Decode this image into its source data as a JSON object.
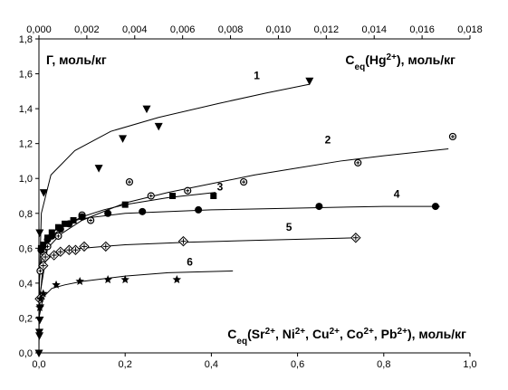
{
  "chart_data": {
    "type": "scatter",
    "grid": false,
    "ylabel": "Г, моль/кг",
    "top_xlabel": "C_eq(Hg2+), моль/кг",
    "bottom_xlabel": "C_eq(Sr2+, Ni2+, Cu2+, Co2+, Pb2+), моль/кг",
    "xlim": [
      0,
      1.0
    ],
    "ylim": [
      0,
      1.8
    ],
    "top_xlim": [
      0,
      0.018
    ],
    "x_ticks": [
      "0,0",
      "0,2",
      "0,4",
      "0,6",
      "0,8",
      "1,0"
    ],
    "x_tick_values": [
      0,
      0.2,
      0.4,
      0.6,
      0.8,
      1.0
    ],
    "y_ticks": [
      "0,0",
      "0,2",
      "0,4",
      "0,6",
      "0,8",
      "1,0",
      "1,2",
      "1,4",
      "1,6",
      "1,8"
    ],
    "y_tick_values": [
      0,
      0.2,
      0.4,
      0.6,
      0.8,
      1.0,
      1.2,
      1.4,
      1.6,
      1.8
    ],
    "top_ticks": [
      "0,000",
      "0,002",
      "0,004",
      "0,006",
      "0,008",
      "0,010",
      "0,012",
      "0,014",
      "0,016",
      "0,018"
    ],
    "top_tick_values": [
      0,
      0.002,
      0.004,
      0.006,
      0.008,
      0.01,
      0.012,
      0.014,
      0.016,
      0.018
    ],
    "series": [
      {
        "label": "1",
        "axis": "top",
        "marker": "triangle-down",
        "points": [
          [
            2e-05,
            0.1
          ],
          [
            3e-05,
            0.69
          ],
          [
            0.0002,
            0.92
          ],
          [
            0.0025,
            1.06
          ],
          [
            0.0045,
            1.4
          ],
          [
            0.0035,
            1.23
          ],
          [
            0.005,
            1.3
          ],
          [
            0.0113,
            1.56
          ]
        ],
        "curve": [
          [
            1e-07,
            0.0
          ],
          [
            2e-05,
            0.4
          ],
          [
            0.0001,
            0.8
          ],
          [
            0.0005,
            1.02
          ],
          [
            0.0015,
            1.16
          ],
          [
            0.003,
            1.27
          ],
          [
            0.005,
            1.35
          ],
          [
            0.0075,
            1.43
          ],
          [
            0.0095,
            1.49
          ],
          [
            0.0113,
            1.54
          ]
        ]
      },
      {
        "label": "2",
        "axis": "bottom",
        "marker": "circle-plus",
        "points": [
          [
            0.003,
            0.47
          ],
          [
            0.01,
            0.58
          ],
          [
            0.02,
            0.61
          ],
          [
            0.045,
            0.67
          ],
          [
            0.1,
            0.79
          ],
          [
            0.12,
            0.76
          ],
          [
            0.21,
            0.98
          ],
          [
            0.26,
            0.9
          ],
          [
            0.345,
            0.93
          ],
          [
            0.475,
            0.98
          ],
          [
            0.74,
            1.09
          ],
          [
            0.96,
            1.24
          ]
        ],
        "curve": [
          [
            0.0,
            0.3
          ],
          [
            0.02,
            0.6
          ],
          [
            0.05,
            0.68
          ],
          [
            0.1,
            0.76
          ],
          [
            0.2,
            0.86
          ],
          [
            0.3,
            0.92
          ],
          [
            0.4,
            0.97
          ],
          [
            0.5,
            1.02
          ],
          [
            0.6,
            1.06
          ],
          [
            0.7,
            1.1
          ],
          [
            0.8,
            1.13
          ],
          [
            0.95,
            1.17
          ]
        ]
      },
      {
        "label": "3",
        "axis": "bottom",
        "marker": "square",
        "points": [
          [
            0.005,
            0.6
          ],
          [
            0.01,
            0.62
          ],
          [
            0.02,
            0.66
          ],
          [
            0.03,
            0.69
          ],
          [
            0.045,
            0.72
          ],
          [
            0.06,
            0.74
          ],
          [
            0.08,
            0.76
          ],
          [
            0.2,
            0.85
          ],
          [
            0.31,
            0.9
          ],
          [
            0.405,
            0.9
          ]
        ],
        "curve": [
          [
            0.0,
            0.45
          ],
          [
            0.01,
            0.6
          ],
          [
            0.03,
            0.67
          ],
          [
            0.06,
            0.73
          ],
          [
            0.1,
            0.78
          ],
          [
            0.15,
            0.82
          ],
          [
            0.2,
            0.85
          ],
          [
            0.3,
            0.89
          ],
          [
            0.41,
            0.92
          ]
        ]
      },
      {
        "label": "4",
        "axis": "bottom",
        "marker": "circle",
        "points": [
          [
            0.005,
            0.59
          ],
          [
            0.02,
            0.65
          ],
          [
            0.03,
            0.67
          ],
          [
            0.05,
            0.71
          ],
          [
            0.07,
            0.74
          ],
          [
            0.1,
            0.78
          ],
          [
            0.16,
            0.8
          ],
          [
            0.24,
            0.81
          ],
          [
            0.37,
            0.82
          ],
          [
            0.65,
            0.84
          ],
          [
            0.92,
            0.84
          ]
        ],
        "curve": [
          [
            0.0,
            0.4
          ],
          [
            0.01,
            0.62
          ],
          [
            0.03,
            0.69
          ],
          [
            0.06,
            0.74
          ],
          [
            0.1,
            0.77
          ],
          [
            0.2,
            0.8
          ],
          [
            0.4,
            0.82
          ],
          [
            0.6,
            0.83
          ],
          [
            0.8,
            0.84
          ],
          [
            0.93,
            0.84
          ]
        ]
      },
      {
        "label": "5",
        "axis": "bottom",
        "marker": "diamond-plus",
        "points": [
          [
            0.002,
            0.31
          ],
          [
            0.01,
            0.5
          ],
          [
            0.015,
            0.55
          ],
          [
            0.035,
            0.56
          ],
          [
            0.05,
            0.58
          ],
          [
            0.07,
            0.59
          ],
          [
            0.085,
            0.59
          ],
          [
            0.105,
            0.61
          ],
          [
            0.155,
            0.61
          ],
          [
            0.335,
            0.64
          ],
          [
            0.735,
            0.66
          ]
        ],
        "curve": [
          [
            0.0,
            0.25
          ],
          [
            0.01,
            0.51
          ],
          [
            0.03,
            0.56
          ],
          [
            0.06,
            0.59
          ],
          [
            0.1,
            0.6
          ],
          [
            0.2,
            0.62
          ],
          [
            0.35,
            0.635
          ],
          [
            0.5,
            0.645
          ],
          [
            0.74,
            0.66
          ]
        ]
      },
      {
        "label": "6",
        "axis": "bottom",
        "marker": "star",
        "points": [
          [
            0.002,
            0.26
          ],
          [
            0.004,
            0.31
          ],
          [
            0.01,
            0.34
          ],
          [
            0.04,
            0.39
          ],
          [
            0.095,
            0.41
          ],
          [
            0.16,
            0.42
          ],
          [
            0.2,
            0.42
          ],
          [
            0.32,
            0.42
          ]
        ],
        "curve": [
          [
            0.0,
            0.2
          ],
          [
            0.01,
            0.32
          ],
          [
            0.03,
            0.37
          ],
          [
            0.06,
            0.39
          ],
          [
            0.1,
            0.41
          ],
          [
            0.2,
            0.44
          ],
          [
            0.3,
            0.46
          ],
          [
            0.45,
            0.47
          ]
        ]
      }
    ],
    "extra_points": {
      "marker": "triangle-down",
      "points": [
        [
          0.0,
          0.0
        ],
        [
          0.001,
          0.12
        ],
        [
          0.002,
          0.19
        ],
        [
          0.003,
          0.26
        ]
      ]
    },
    "curve_labels": [
      {
        "text": "1",
        "x": 0.0091,
        "y": 1.57,
        "axis": "top"
      },
      {
        "text": "2",
        "x": 0.67,
        "y": 1.2,
        "axis": "bottom"
      },
      {
        "text": "3",
        "x": 0.42,
        "y": 0.93,
        "axis": "bottom"
      },
      {
        "text": "4",
        "x": 0.83,
        "y": 0.89,
        "axis": "bottom"
      },
      {
        "text": "5",
        "x": 0.58,
        "y": 0.7,
        "axis": "bottom"
      },
      {
        "text": "6",
        "x": 0.35,
        "y": 0.5,
        "axis": "bottom"
      }
    ]
  }
}
